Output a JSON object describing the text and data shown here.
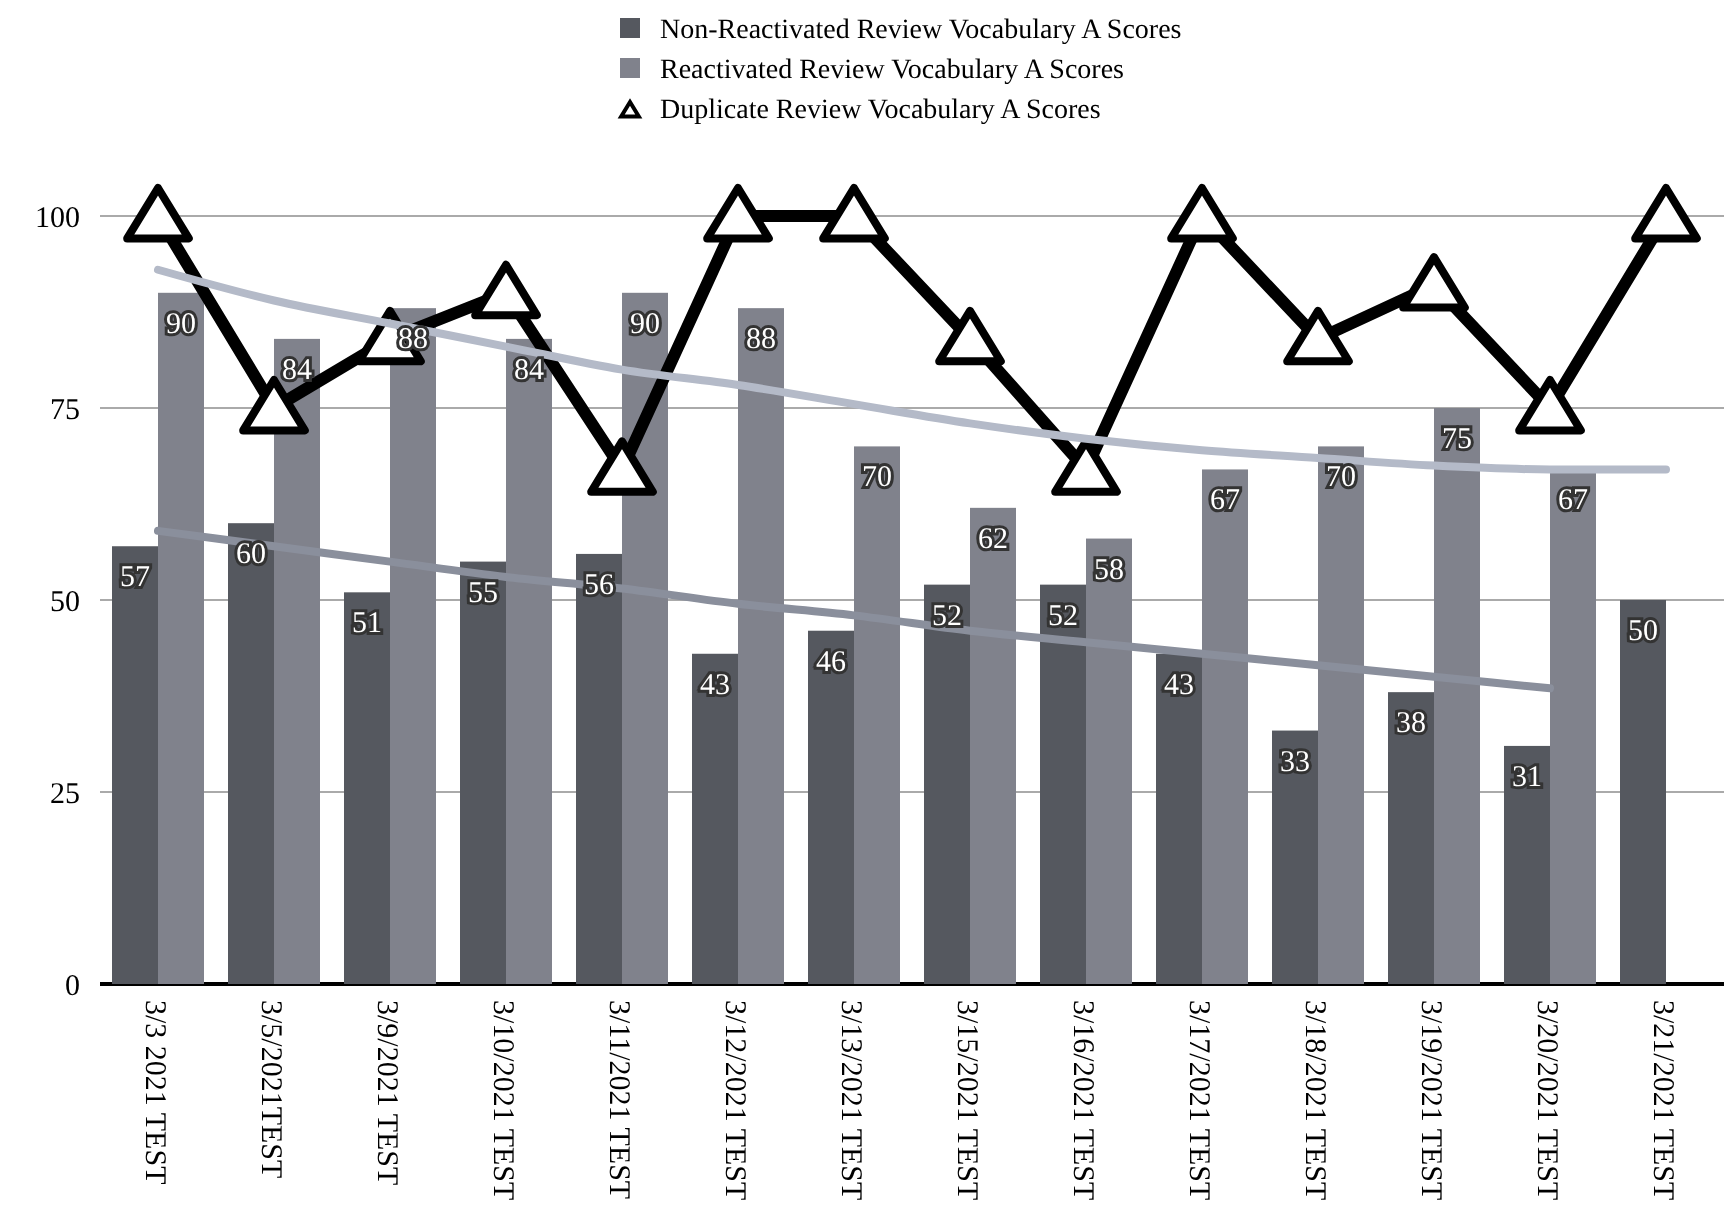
{
  "chart_data": {
    "type": "bar",
    "categories": [
      "3/3 2021 TEST",
      "3/5/2021TEST",
      "3/9/2021 TEST",
      "3/10/2021 TEST",
      "3/11/2021 TEST",
      "3/12/2021 TEST",
      "3/13/2021 TEST",
      "3/15/2021 TEST",
      "3/16/2021 TEST",
      "3/17/2021 TEST",
      "3/18/2021 TEST",
      "3/19/2021 TEST",
      "3/20/2021 TEST",
      "3/21/2021 TEST"
    ],
    "series": [
      {
        "name": "Non-Reactivated Review Vocabulary A Scores",
        "color": "#55585f",
        "values": [
          57,
          60,
          51,
          55,
          56,
          43,
          46,
          52,
          52,
          43,
          33,
          38,
          31,
          50
        ],
        "value_labels": [
          "57",
          "60",
          "51",
          "55",
          "56",
          "43",
          "46",
          "52",
          "52",
          "43",
          "33",
          "38",
          "31",
          "50"
        ]
      },
      {
        "name": "Reactivated Review Vocabulary A Scores",
        "color": "#80828c",
        "values": [
          90,
          84,
          88,
          84,
          90,
          88,
          70,
          62,
          58,
          67,
          70,
          75,
          67,
          null
        ],
        "value_labels": [
          "90",
          "84",
          "88",
          "84",
          "90",
          "88",
          "70",
          "62",
          "58",
          "67",
          "70",
          "75",
          "67",
          null
        ]
      },
      {
        "name": "Duplicate Review Vocabulary A Scores",
        "type": "line",
        "color": "#000000",
        "marker": "triangle",
        "values": [
          100,
          75,
          84,
          90,
          67,
          100,
          100,
          84,
          67,
          100,
          84,
          91,
          75,
          100
        ]
      },
      {
        "type": "line",
        "color": "#b4bac8",
        "marker": "none",
        "values": [
          93,
          89,
          86,
          83,
          80,
          78,
          75.5,
          73,
          71,
          69.5,
          68.5,
          67.5,
          67,
          67
        ]
      },
      {
        "type": "line",
        "color": "#8a8f9c",
        "marker": "none",
        "values": [
          59,
          57,
          55,
          53,
          51.5,
          49.5,
          48,
          46,
          44.5,
          43,
          41.5,
          40,
          38.5,
          null
        ]
      }
    ],
    "ylim": [
      0,
      100
    ],
    "yticks": [
      0,
      25,
      50,
      75,
      100
    ],
    "grid": "y",
    "legend": "top"
  }
}
